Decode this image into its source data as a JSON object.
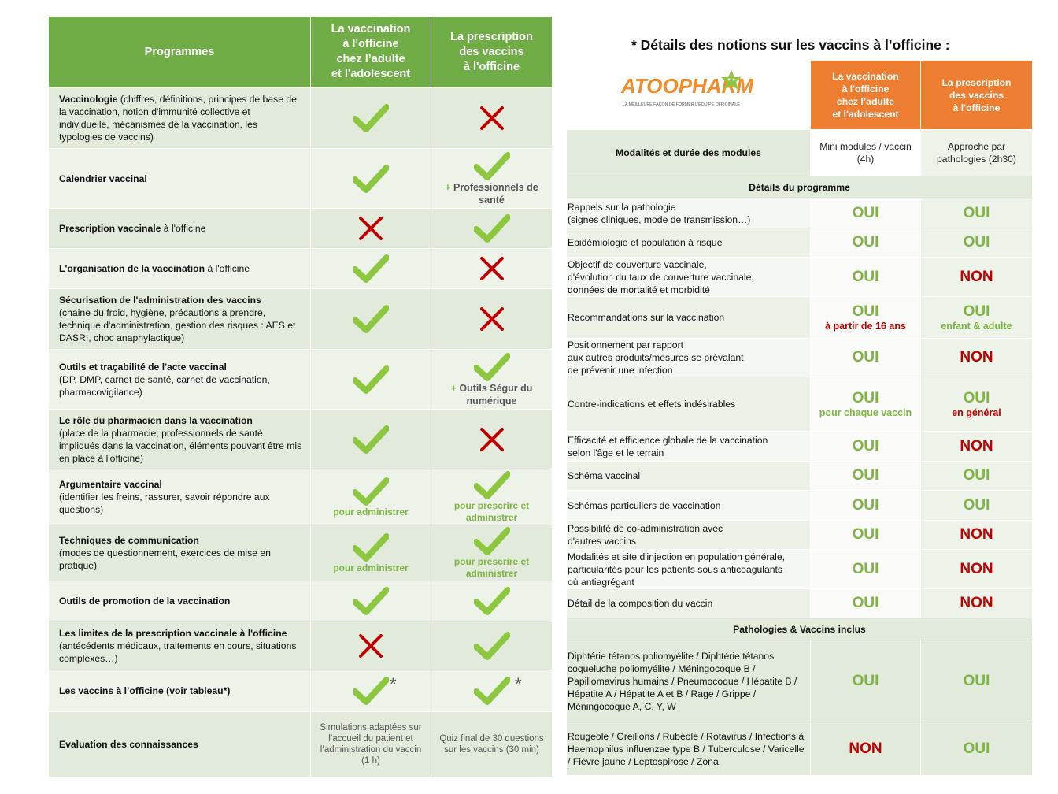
{
  "left": {
    "headers": [
      "Programmes",
      "La vaccination\nà l'officine\nchez l’adulte\net l'adolescent",
      "La prescription\ndes vaccins\nà l'officine"
    ],
    "rows": [
      {
        "title": "Vaccinologie",
        "desc": " (chiffres, définitions, principes de base de la vaccination, notion d'immunité collective et individuelle, mécanismes de la vaccination, les typologies de vaccins)"
      },
      {
        "title": "Calendrier vaccinal",
        "desc": "",
        "c2_note_plus": "+",
        "c2_note": " Professionnels de santé"
      },
      {
        "title": "Prescription vaccinale",
        "desc": " à l'officine"
      },
      {
        "title": "L'organisation de la vaccination",
        "desc": " à l'officine"
      },
      {
        "title": "Sécurisation de l'administration des vaccins",
        "desc": "(chaine du froid, hygiène, précautions à prendre, technique d'administration, gestion des risques : AES et DASRI, choc anaphylactique)"
      },
      {
        "title": "Outils et traçabilité de l'acte vaccinal",
        "desc": "(DP, DMP, carnet de santé, carnet de vaccination, pharmacovigilance)",
        "c2_note_plus": "+",
        "c2_note": " Outils Ségur du numérique"
      },
      {
        "title": "Le rôle du pharmacien dans la vaccination",
        "desc": "(place de la pharmacie, professionnels de santé impliqués dans la vaccination, éléments pouvant être mis en place à l'officine)"
      },
      {
        "title": "Argumentaire vaccinal",
        "desc": "(identifier les freins, rassurer, savoir répondre aux questions)",
        "c1_note": "pour administrer",
        "c2_note": "pour prescrire et administrer"
      },
      {
        "title": "Techniques de communication",
        "desc": "(modes de questionnement, exercices de mise en pratique)",
        "c1_note": "pour administrer",
        "c2_note": "pour prescrire et administrer"
      },
      {
        "title": "Outils de promotion de la vaccination",
        "desc": ""
      },
      {
        "title": "Les limites de la prescription vaccinale à l'officine",
        "desc": " (antécédents médicaux, traitements en cours, situations complexes…)"
      },
      {
        "title": "Les vaccins à l’officine (voir tableau*)",
        "desc": "",
        "star": "*"
      },
      {
        "title": "Evaluation des connaissances",
        "desc": "",
        "c1_text": "Simulations adaptées sur l’accueil du patient et l’administration du vaccin (1 h)",
        "c2_text": "Quiz final de 30 questions sur les vaccins (30 min)"
      }
    ],
    "marks": [
      [
        "check",
        "cross"
      ],
      [
        "check",
        "check"
      ],
      [
        "cross",
        "check"
      ],
      [
        "check",
        "cross"
      ],
      [
        "check",
        "cross"
      ],
      [
        "check",
        "check"
      ],
      [
        "check",
        "cross"
      ],
      [
        "check",
        "check"
      ],
      [
        "check",
        "check"
      ],
      [
        "check",
        "check"
      ],
      [
        "cross",
        "check"
      ],
      [
        "check",
        "check"
      ]
    ]
  },
  "right": {
    "title": "* Détails des notions sur les vaccins à l’officine :",
    "logo": {
      "name": "ATOOPHARM",
      "tagline": "LA MEILLEURE FAÇON DE FORMER L'ÉQUIPE OFFICINALE"
    },
    "headers": [
      "La vaccination\nà l'officine\nchez l’adulte\net l'adolescent",
      "La prescription\ndes vaccins\nà l'officine"
    ],
    "modalites": {
      "label": "Modalités et durée des modules",
      "c1": "Mini modules / vaccin (4h)",
      "c2": "Approche par pathologies (2h30)"
    },
    "section1": "Détails du programme",
    "rows": [
      {
        "label": "Rappels sur la pathologie\n(signes cliniques, mode de transmission…)",
        "v1": "OUI",
        "v2": "OUI"
      },
      {
        "label": "Epidémiologie et population à risque",
        "v1": "OUI",
        "v2": "OUI"
      },
      {
        "label": "Objectif de couverture vaccinale,\nd'évolution du taux de couverture vaccinale,\ndonnées de mortalité et morbidité",
        "v1": "OUI",
        "v2": "NON"
      },
      {
        "label": "Recommandations sur la vaccination",
        "v1": "OUI",
        "s1": "à partir de 16 ans",
        "v2": "OUI",
        "s2": "enfant & adulte"
      },
      {
        "label": "Positionnement par rapport\naux autres produits/mesures se prévalant\nde prévenir une infection",
        "v1": "OUI",
        "v2": "NON"
      },
      {
        "label": "Contre-indications et effets indésirables",
        "v1": "OUI",
        "s1": "pour chaque vaccin",
        "v2": "OUI",
        "s2": "en général"
      },
      {
        "label": "Efficacité et efficience globale de la vaccination\nselon l'âge et le terrain",
        "v1": "OUI",
        "v2": "NON"
      },
      {
        "label": "Schéma vaccinal",
        "v1": "OUI",
        "v2": "OUI"
      },
      {
        "label": "Schémas particuliers de vaccination",
        "v1": "OUI",
        "v2": "OUI"
      },
      {
        "label": "Possibilité de co-administration avec\nd'autres vaccins",
        "v1": "OUI",
        "v2": "NON"
      },
      {
        "label": "Modalités et site d'injection en population générale,\nparticularités pour les patients sous anticoagulants\noù antiagrégant",
        "v1": "OUI",
        "v2": "NON"
      },
      {
        "label": "Détail de la composition du vaccin",
        "v1": "OUI",
        "v2": "NON"
      }
    ],
    "section2": "Pathologies & Vaccins inclus",
    "rows2": [
      {
        "label": "Diphtérie tétanos poliomyélite / Diphtérie tétanos coqueluche poliomyélite / Méningocoque B / Papillomavirus humains / Pneumocoque / Hépatite B / Hépatite A / Hépatite A et B / Rage / Grippe / Méningocoque A, C, Y, W",
        "v1": "OUI",
        "v2": "OUI"
      },
      {
        "label": "Rougeole / Oreillons / Rubéole / Rotavirus / Infections à Haemophilus influenzae type B / Tuberculose / Varicelle / Fièvre jaune / Leptospirose / Zona",
        "v1": "NON",
        "v2": "OUI"
      }
    ]
  },
  "colors": {
    "green_header": "#70AD47",
    "orange_header": "#ED7D31",
    "check": "#8DC63F",
    "cross": "#C00000",
    "row_light": "#E2EBDB"
  }
}
